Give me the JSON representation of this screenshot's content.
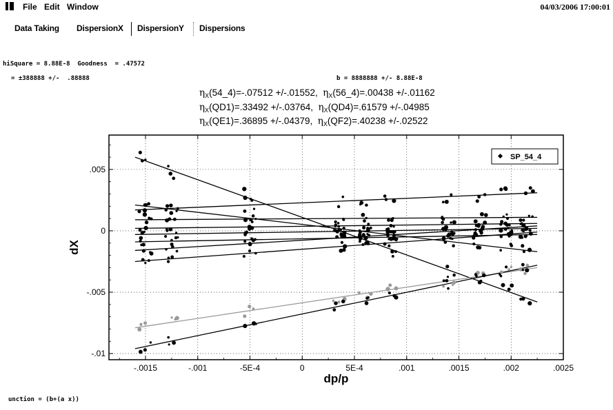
{
  "menu": {
    "file": "File",
    "edit": "Edit",
    "window": "Window",
    "datetime": "04/03/2006 17:00:01"
  },
  "tabs": [
    {
      "label": "Data Taking"
    },
    {
      "label": "DispersionX"
    },
    {
      "label": "DispersionY"
    },
    {
      "label": "Dispersions"
    }
  ],
  "fit_info": {
    "chisquare": "hiSquare = ",
    "chisquare_val": "8.88E-8",
    "goodness_label": "Goodness  = ",
    "goodness_val": ".47572",
    "a_line": "= ±388888 +/-  .88888",
    "b_line": "b = 8888888 +/- 8.88E-8"
  },
  "eta_lines": [
    [
      {
        "name": "54_4",
        "value": "=-.07512 +/-.01552,"
      },
      {
        "name": "56_4",
        "value": "=.00438 +/-.01162"
      }
    ],
    [
      {
        "name": "QD1",
        "value": "=.33492 +/-.03764,"
      },
      {
        "name": "QD4",
        "value": "=.61579 +/-.04985"
      }
    ],
    [
      {
        "name": "QE1",
        "value": "=.36895 +/-.04379,"
      },
      {
        "name": "QF2",
        "value": "=.40238 +/-.02522"
      }
    ]
  ],
  "footer": {
    "function": "unction = (b+(a x))"
  },
  "chart_data": {
    "type": "scatter",
    "title": "",
    "xlabel": "dp/p",
    "ylabel": "dX",
    "xlim": [
      -0.00185,
      0.0025
    ],
    "ylim": [
      -0.0105,
      0.0078
    ],
    "x_ticks": [
      -0.0015,
      -0.001,
      -0.0005,
      0,
      0.0005,
      0.001,
      0.0015,
      0.002,
      0.0025
    ],
    "x_tick_labels": [
      "-.0015",
      "-.001",
      "-5E-4",
      "0",
      "5E-4",
      ".001",
      ".0015",
      ".002",
      ".0025"
    ],
    "y_ticks": [
      0.005,
      0,
      -0.005,
      -0.01
    ],
    "y_tick_labels": [
      ".005",
      "0",
      "-.005",
      "-.01"
    ],
    "legend": {
      "label": "SP_54_4",
      "placement": "top-right"
    },
    "x_clusters": [
      -0.0015,
      -0.00125,
      -0.0005,
      0.00035,
      0.0006,
      0.00085,
      0.0014,
      0.0017,
      0.00195,
      0.00215
    ],
    "series": [
      {
        "fit": [
          -0.0016,
          0.006,
          0.00225,
          -0.0058
        ],
        "color": "#000000",
        "scatter": 0.0007
      },
      {
        "fit": [
          -0.0016,
          0.0017,
          0.00225,
          0.0031
        ],
        "color": "#000000",
        "scatter": 0.0005
      },
      {
        "fit": [
          -0.0016,
          0.0021,
          0.00225,
          -0.0017
        ],
        "color": "#000000",
        "scatter": 0.0004
      },
      {
        "fit": [
          -0.0016,
          0.0009,
          0.00225,
          0.0011
        ],
        "color": "#000000",
        "scatter": 0.0003
      },
      {
        "fit": [
          -0.0016,
          0.0002,
          0.00225,
          0.0006
        ],
        "color": "#000000",
        "scatter": 0.0003
      },
      {
        "fit": [
          -0.0016,
          -0.0003,
          0.00225,
          0.0002
        ],
        "color": "#000000",
        "scatter": 0.0003
      },
      {
        "fit": [
          -0.0016,
          -0.0009,
          0.00225,
          -0.0003
        ],
        "color": "#000000",
        "scatter": 0.0003
      },
      {
        "fit": [
          -0.0016,
          -0.0016,
          0.00225,
          0.0004
        ],
        "color": "#000000",
        "scatter": 0.0004
      },
      {
        "fit": [
          -0.0016,
          -0.0025,
          0.00225,
          -0.0001
        ],
        "color": "#000000",
        "scatter": 0.0004
      },
      {
        "fit": [
          -0.0016,
          -0.0079,
          0.00225,
          -0.003
        ],
        "color": "#9a9a9a",
        "scatter": 0.0004
      },
      {
        "fit": [
          -0.0016,
          -0.0096,
          0.00225,
          -0.0028
        ],
        "color": "#000000",
        "scatter": 0.0004
      }
    ]
  }
}
